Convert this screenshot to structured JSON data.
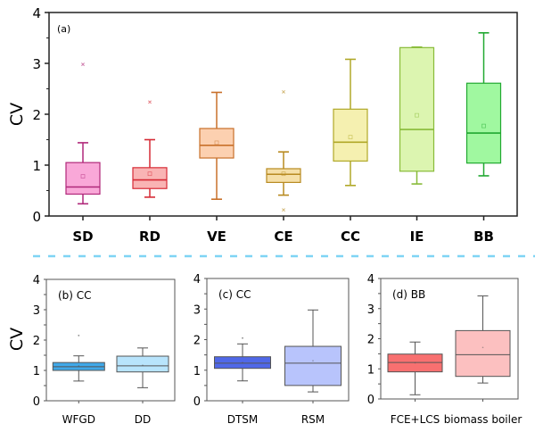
{
  "separator_color": "#7fd4f4",
  "chart_data": [
    {
      "type": "box",
      "panel": "(a)",
      "title": "(a)",
      "ylabel": "CV",
      "xlabel": "",
      "ylim": [
        0,
        4
      ],
      "yticks": [
        "0",
        "1",
        "2",
        "3",
        "4"
      ],
      "grid": false,
      "categories": [
        "SD",
        "RD",
        "VE",
        "CE",
        "CC",
        "IE",
        "BB"
      ],
      "boxes": [
        {
          "name": "SD",
          "whisker_low": 0.24,
          "q1": 0.43,
          "median": 0.57,
          "q3": 1.05,
          "whisker_high": 1.44,
          "mean": 0.78,
          "outliers": [
            2.98
          ],
          "fill": "#f9a8d8",
          "stroke": "#b0287a"
        },
        {
          "name": "RD",
          "whisker_low": 0.37,
          "q1": 0.54,
          "median": 0.71,
          "q3": 0.95,
          "whisker_high": 1.5,
          "mean": 0.83,
          "outliers": [
            2.24
          ],
          "fill": "#f9b4b4",
          "stroke": "#d62a35"
        },
        {
          "name": "VE",
          "whisker_low": 0.33,
          "q1": 1.14,
          "median": 1.39,
          "q3": 1.72,
          "whisker_high": 2.43,
          "mean": 1.44,
          "outliers": [],
          "fill": "#fcd0b0",
          "stroke": "#c8702a"
        },
        {
          "name": "CE",
          "whisker_low": 0.41,
          "q1": 0.66,
          "median": 0.82,
          "q3": 0.93,
          "whisker_high": 1.26,
          "mean": 0.83,
          "outliers": [
            2.44,
            0.12
          ],
          "fill": "#f5dfa8",
          "stroke": "#b88a20"
        },
        {
          "name": "CC",
          "whisker_low": 0.6,
          "q1": 1.08,
          "median": 1.45,
          "q3": 2.1,
          "whisker_high": 3.08,
          "mean": 1.55,
          "outliers": [],
          "fill": "#f5f0b0",
          "stroke": "#b0a828"
        },
        {
          "name": "IE",
          "whisker_low": 0.63,
          "q1": 0.88,
          "median": 1.7,
          "q3": 3.31,
          "whisker_high": 3.32,
          "mean": 1.98,
          "outliers": [],
          "fill": "#dcf5b0",
          "stroke": "#88bb38"
        },
        {
          "name": "BB",
          "whisker_low": 0.79,
          "q1": 1.04,
          "median": 1.63,
          "q3": 2.61,
          "whisker_high": 3.6,
          "mean": 1.77,
          "outliers": [],
          "fill": "#a0f8a0",
          "stroke": "#20a830"
        }
      ]
    },
    {
      "type": "box",
      "panel": "(b)",
      "title": "(b) CC",
      "ylabel": "CV",
      "xlabel": "",
      "ylim": [
        0,
        4
      ],
      "yticks": [
        "0",
        "1",
        "2",
        "3",
        "4"
      ],
      "grid": false,
      "categories": [
        "WFGD",
        "DD"
      ],
      "boxes": [
        {
          "name": "WFGD",
          "whisker_low": 0.65,
          "q1": 1.0,
          "median": 1.12,
          "q3": 1.26,
          "whisker_high": 1.48,
          "mean": 1.15,
          "outliers": [
            2.15
          ],
          "fill": "#40a8e8",
          "stroke": "#555555"
        },
        {
          "name": "DD",
          "whisker_low": 0.43,
          "q1": 0.95,
          "median": 1.15,
          "q3": 1.47,
          "whisker_high": 1.74,
          "mean": 1.17,
          "outliers": [],
          "fill": "#b8e4fc",
          "stroke": "#555555"
        }
      ]
    },
    {
      "type": "box",
      "panel": "(c)",
      "title": "(c) CC",
      "ylabel": "",
      "xlabel": "",
      "ylim": [
        0,
        4
      ],
      "yticks": [
        "0",
        "1",
        "2",
        "3",
        "4"
      ],
      "grid": false,
      "categories": [
        "DTSM",
        "RSM"
      ],
      "boxes": [
        {
          "name": "DTSM",
          "whisker_low": 0.65,
          "q1": 1.06,
          "median": 1.23,
          "q3": 1.44,
          "whisker_high": 1.86,
          "mean": 1.25,
          "outliers": [
            2.05
          ],
          "fill": "#5068e8",
          "stroke": "#555555"
        },
        {
          "name": "RSM",
          "whisker_low": 0.29,
          "q1": 0.5,
          "median": 1.23,
          "q3": 1.78,
          "whisker_high": 2.97,
          "mean": 1.31,
          "outliers": [],
          "fill": "#b8c4fc",
          "stroke": "#555555"
        }
      ]
    },
    {
      "type": "box",
      "panel": "(d)",
      "title": "(d) BB",
      "ylabel": "",
      "xlabel": "",
      "ylim": [
        0,
        4
      ],
      "yticks": [
        "0",
        "1",
        "2",
        "3",
        "4"
      ],
      "grid": false,
      "categories": [
        "FCE+LCS",
        "biomass boiler"
      ],
      "boxes": [
        {
          "name": "FCE+LCS",
          "whisker_low": 0.14,
          "q1": 0.9,
          "median": 1.21,
          "q3": 1.49,
          "whisker_high": 1.89,
          "mean": 1.2,
          "outliers": [],
          "fill": "#f87070",
          "stroke": "#555555"
        },
        {
          "name": "biomass boiler",
          "whisker_low": 0.53,
          "q1": 0.75,
          "median": 1.47,
          "q3": 2.27,
          "whisker_high": 3.42,
          "mean": 1.71,
          "outliers": [],
          "fill": "#fcc0c0",
          "stroke": "#555555"
        }
      ]
    }
  ]
}
